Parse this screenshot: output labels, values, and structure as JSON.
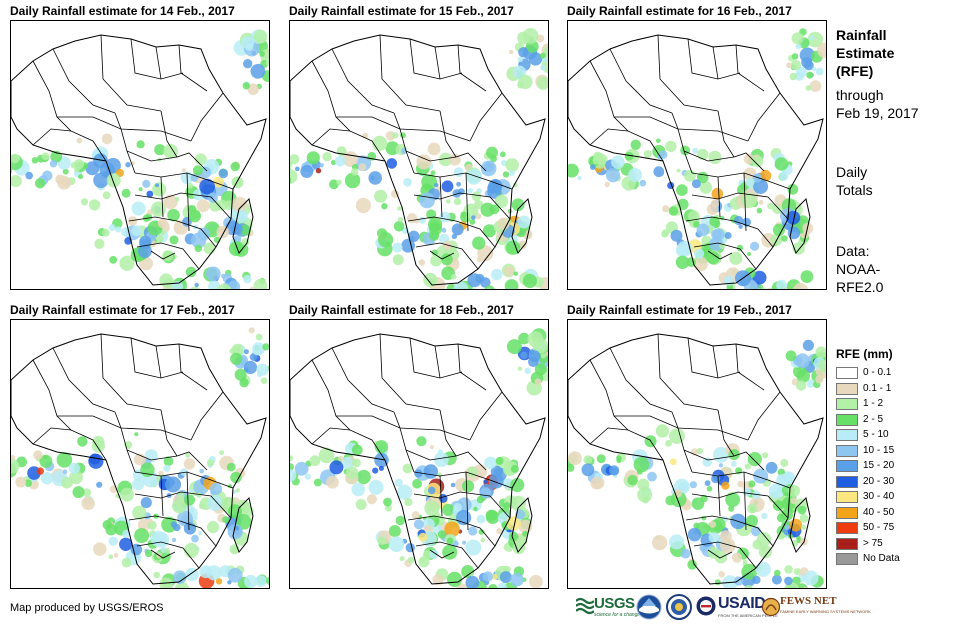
{
  "panels": [
    {
      "title": "Daily Rainfall estimate for 14 Feb., 2017",
      "seed": 14
    },
    {
      "title": "Daily Rainfall estimate for 15 Feb., 2017",
      "seed": 15
    },
    {
      "title": "Daily Rainfall estimate for 16 Feb., 2017",
      "seed": 16
    },
    {
      "title": "Daily Rainfall estimate for 17 Feb., 2017",
      "seed": 17
    },
    {
      "title": "Daily Rainfall estimate for 18 Feb., 2017",
      "seed": 18
    },
    {
      "title": "Daily Rainfall estimate for 19 Feb., 2017",
      "seed": 19
    }
  ],
  "side": {
    "title_lines": [
      "Rainfall",
      "Estimate",
      "(RFE)"
    ],
    "through_lines": [
      "through",
      "Feb 19, 2017"
    ],
    "totals_lines": [
      "Daily",
      "Totals"
    ],
    "data_lines": [
      "Data:",
      "NOAA-",
      "RFE2.0"
    ]
  },
  "legend": {
    "title": "RFE (mm)",
    "items": [
      {
        "label": "0 - 0.1",
        "color": "#ffffff"
      },
      {
        "label": "0.1 - 1",
        "color": "#e8d8bd"
      },
      {
        "label": "1 - 2",
        "color": "#b3f0a8"
      },
      {
        "label": "2 - 5",
        "color": "#66e066"
      },
      {
        "label": "5 - 10",
        "color": "#b8ecf6"
      },
      {
        "label": "10 - 15",
        "color": "#8ec6f2"
      },
      {
        "label": "15 - 20",
        "color": "#5aa0e8"
      },
      {
        "label": "20 - 30",
        "color": "#1f5ee0"
      },
      {
        "label": "30 - 40",
        "color": "#fce880"
      },
      {
        "label": "40 - 50",
        "color": "#f4a41a"
      },
      {
        "label": "50 - 75",
        "color": "#ec3c10"
      },
      {
        "label": "> 75",
        "color": "#a8201c"
      },
      {
        "label": "No Data",
        "color": "#999999"
      }
    ]
  },
  "credit": "Map produced by USGS/EROS",
  "logos": {
    "usgs": "USGS",
    "usgs_tagline": "science for a changing world",
    "usaid": "USAID",
    "usaid_tagline": "FROM THE AMERICAN PEOPLE",
    "fews": "FEWS NET",
    "fews_tagline": "FAMINE EARLY WARNING SYSTEMS NETWORK"
  }
}
